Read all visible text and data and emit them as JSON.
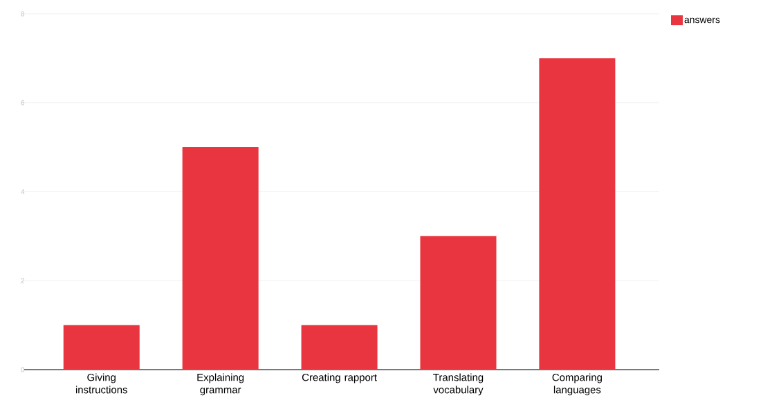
{
  "chart_data": {
    "type": "bar",
    "categories": [
      "Giving instructions",
      "Explaining grammar",
      "Creating rapport",
      "Translating vocabulary",
      "Comparing languages"
    ],
    "series": [
      {
        "name": "answers",
        "color": "#e8353f",
        "values": [
          1,
          5,
          1,
          3,
          7
        ]
      }
    ],
    "ylim": [
      0,
      8
    ],
    "yticks": [
      0,
      2,
      4,
      6,
      8
    ],
    "grid": "y",
    "legend": "top right"
  }
}
